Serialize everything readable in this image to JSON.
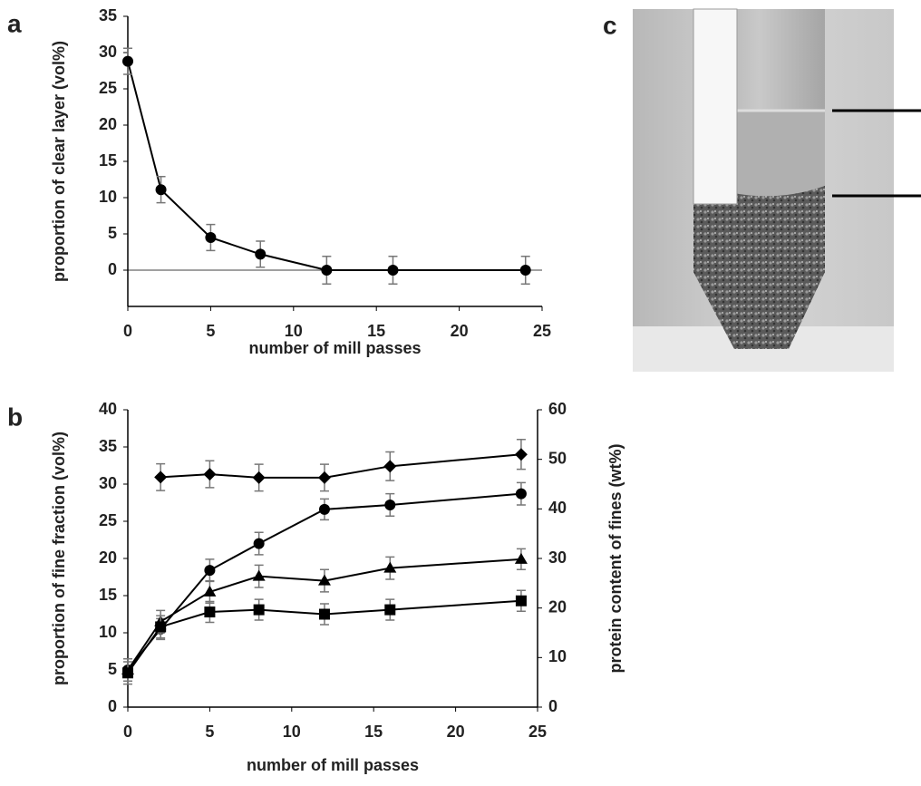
{
  "chart_data": [
    {
      "type": "line",
      "panel": "a",
      "xlabel": "number of mill passes",
      "ylabel": "proportion of clear layer (vol%)",
      "x": [
        0,
        2,
        5,
        8,
        12,
        16,
        24
      ],
      "series": [
        {
          "color": "#000000",
          "marker": "circle",
          "values": [
            28.8,
            11.1,
            4.5,
            2.2,
            0,
            0,
            0
          ],
          "errors": [
            1.8,
            1.8,
            1.8,
            1.8,
            1.9,
            1.9,
            1.9
          ]
        }
      ],
      "xlim": [
        0,
        25
      ],
      "xticks": [
        0,
        5,
        10,
        15,
        20,
        25
      ],
      "ylim": [
        -5,
        35
      ],
      "yticks": [
        0,
        5,
        10,
        15,
        20,
        25,
        30,
        35
      ],
      "hline": 0
    },
    {
      "type": "line",
      "panel": "b",
      "xlabel": "number of mill passes",
      "ylabel": "proportion of fine fraction (vol%)",
      "y2label": "protein content of fines (wt%)",
      "x": [
        0,
        2,
        5,
        8,
        12,
        16,
        24
      ],
      "series": [
        {
          "color": "#000000",
          "marker": "diamond",
          "axis": "y2",
          "values": [
            null,
            46.4,
            47,
            46.3,
            46.3,
            48.6,
            51
          ],
          "errors": [
            null,
            2.7,
            2.7,
            2.7,
            2.7,
            2.9,
            3
          ]
        },
        {
          "color": "#000000",
          "marker": "circle",
          "values": [
            5,
            10.5,
            18.4,
            22,
            26.6,
            27.2,
            28.7
          ],
          "errors": [
            1.5,
            1.4,
            1.5,
            1.5,
            1.4,
            1.5,
            1.5
          ]
        },
        {
          "color": "#000000",
          "marker": "triangle",
          "values": [
            5,
            11.5,
            15.5,
            17.6,
            17,
            18.7,
            19.9
          ],
          "errors": [
            1.5,
            1.5,
            1.5,
            1.5,
            1.5,
            1.5,
            1.4
          ]
        },
        {
          "color": "#000000",
          "marker": "square",
          "values": [
            4.6,
            10.8,
            12.8,
            13.1,
            12.5,
            13.1,
            14.3
          ],
          "errors": [
            1.5,
            1.5,
            1.4,
            1.4,
            1.4,
            1.4,
            1.4
          ]
        }
      ],
      "xlim": [
        0,
        25
      ],
      "xticks": [
        0,
        5,
        10,
        15,
        20,
        25
      ],
      "ylim": [
        0,
        40
      ],
      "yticks": [
        0,
        5,
        10,
        15,
        20,
        25,
        30,
        35,
        40
      ],
      "y2lim": [
        0,
        60
      ],
      "y2ticks": [
        0,
        10,
        20,
        30,
        40,
        50,
        60
      ]
    }
  ],
  "photo_panel": {
    "panel": "c"
  }
}
